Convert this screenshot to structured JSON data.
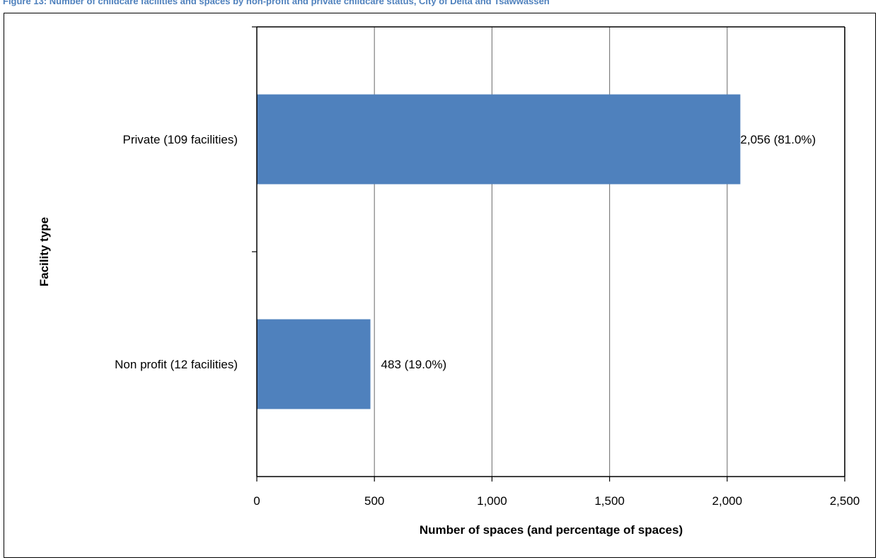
{
  "chart_data": {
    "type": "bar",
    "orientation": "horizontal",
    "title": "Figure 13: Number of childcare facilities and spaces by non-profit and private childcare status, City of Delta and Tsawwassen",
    "categories": [
      "Private (109 facilities)",
      "Non profit (12 facilities)"
    ],
    "values": [
      2056,
      483
    ],
    "data_labels": [
      "2,056 (81.0%)",
      "483 (19.0%)"
    ],
    "xlabel": "Number of spaces (and percentage of spaces)",
    "ylabel": "Facility type",
    "xlim": [
      0,
      2500
    ],
    "xticks": [
      0,
      500,
      1000,
      1500,
      2000,
      2500
    ],
    "xtick_labels": [
      "0",
      "500",
      "1,000",
      "1,500",
      "2,000",
      "2,500"
    ],
    "grid": true,
    "legend": "none",
    "colors": {
      "bar": "#4f81bd",
      "grid": "#808080",
      "axis": "#000000",
      "title": "#4f81bd"
    }
  }
}
